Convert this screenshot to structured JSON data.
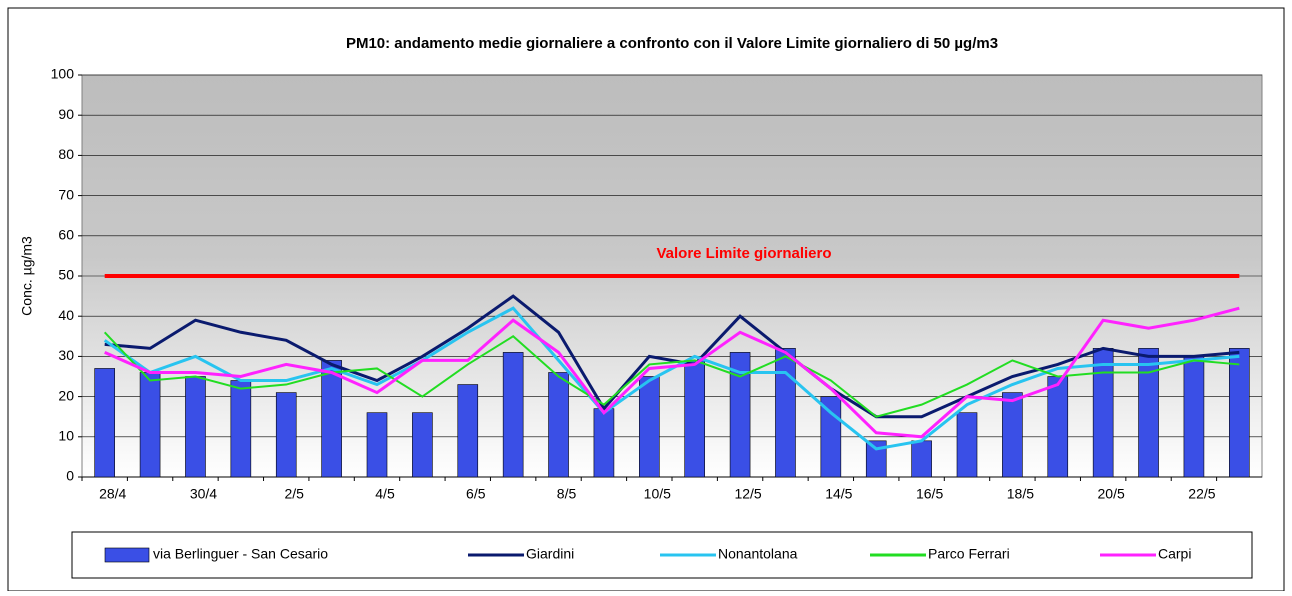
{
  "chart_data": {
    "type": "bar_line",
    "title": "PM10: andamento  medie giornaliere a confronto con il Valore Limite giornaliero di 50 µg/m3",
    "y_label": "Conc. µg/m3",
    "categories": [
      "28/4",
      null,
      "30/4",
      null,
      "2/5",
      null,
      "4/5",
      null,
      "6/5",
      null,
      "8/5",
      null,
      "10/5",
      null,
      "12/5",
      null,
      "14/5",
      null,
      "16/5",
      null,
      "18/5",
      null,
      "20/5",
      null,
      "22/5",
      null
    ],
    "series": [
      {
        "name": "via Berlinguer - San Cesario",
        "kind": "bar",
        "color": "#3a4fe6",
        "values": [
          27,
          26,
          25,
          24,
          21,
          29,
          16,
          16,
          23,
          31,
          26,
          17,
          25,
          29,
          31,
          32,
          20,
          9,
          9,
          16,
          21,
          25,
          32,
          32,
          30,
          32
        ]
      },
      {
        "name": "Giardini",
        "kind": "line",
        "color": "#0a1a6e",
        "values": [
          33,
          32,
          39,
          36,
          34,
          28,
          24,
          30,
          37,
          45,
          36,
          17,
          30,
          28,
          40,
          31,
          22,
          15,
          15,
          20,
          25,
          28,
          32,
          30,
          30,
          31
        ]
      },
      {
        "name": "Nonantolana",
        "kind": "line",
        "color": "#28c4f0",
        "values": [
          34,
          26,
          30,
          24,
          24,
          27,
          23,
          29,
          36,
          42,
          29,
          16,
          24,
          30,
          26,
          26,
          16,
          7,
          9,
          18,
          23,
          27,
          28,
          28,
          29,
          30
        ]
      },
      {
        "name": "Parco Ferrari",
        "kind": "line",
        "color": "#22dd22",
        "values": [
          36,
          24,
          25,
          22,
          23,
          26,
          27,
          20,
          28,
          35,
          25,
          18,
          28,
          29,
          25,
          30,
          24,
          15,
          18,
          23,
          29,
          25,
          26,
          26,
          29,
          28
        ]
      },
      {
        "name": "Carpi",
        "kind": "line",
        "color": "#ff22ff",
        "values": [
          31,
          26,
          26,
          25,
          28,
          26,
          21,
          29,
          29,
          39,
          31,
          16,
          27,
          28,
          36,
          31,
          22,
          11,
          10,
          20,
          19,
          23,
          39,
          37,
          39,
          42
        ]
      }
    ],
    "limit": {
      "value": 50,
      "label": "Valore Limite giornaliero",
      "color": "#ff0000"
    },
    "ylim": [
      0,
      100
    ],
    "yticks": [
      0,
      10,
      20,
      30,
      40,
      50,
      60,
      70,
      80,
      90,
      100
    ],
    "grid": true,
    "legend": "bottom"
  }
}
